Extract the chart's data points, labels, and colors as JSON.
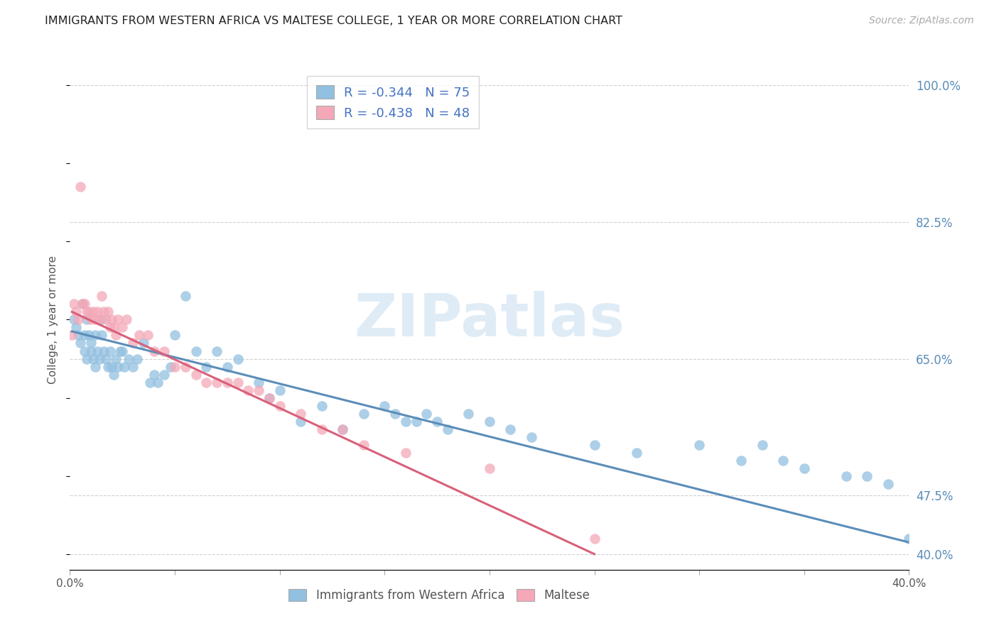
{
  "title": "IMMIGRANTS FROM WESTERN AFRICA VS MALTESE COLLEGE, 1 YEAR OR MORE CORRELATION CHART",
  "source": "Source: ZipAtlas.com",
  "ylabel": "College, 1 year or more",
  "xlim": [
    0.0,
    0.4
  ],
  "ylim": [
    0.38,
    1.02
  ],
  "xticks": [
    0.0,
    0.05,
    0.1,
    0.15,
    0.2,
    0.25,
    0.3,
    0.35,
    0.4
  ],
  "xticklabels": [
    "0.0%",
    "",
    "",
    "",
    "",
    "",
    "",
    "",
    "40.0%"
  ],
  "right_yticks": [
    0.4,
    0.475,
    0.65,
    0.825,
    1.0
  ],
  "right_yticklabels": [
    "40.0%",
    "47.5%",
    "65.0%",
    "82.5%",
    "100.0%"
  ],
  "blue_R": -0.344,
  "blue_N": 75,
  "pink_R": -0.438,
  "pink_N": 48,
  "blue_color": "#92C0E0",
  "pink_color": "#F4A8B8",
  "blue_line_color": "#5B8DB8",
  "pink_line_color": "#D9607A",
  "background_color": "#ffffff",
  "grid_color": "#d0d0d0",
  "watermark": "ZIPatlas",
  "blue_scatter_x": [
    0.002,
    0.003,
    0.004,
    0.005,
    0.006,
    0.007,
    0.007,
    0.008,
    0.008,
    0.009,
    0.01,
    0.01,
    0.011,
    0.012,
    0.012,
    0.013,
    0.014,
    0.015,
    0.015,
    0.016,
    0.017,
    0.018,
    0.019,
    0.02,
    0.021,
    0.022,
    0.023,
    0.024,
    0.025,
    0.026,
    0.028,
    0.03,
    0.032,
    0.035,
    0.038,
    0.04,
    0.042,
    0.045,
    0.048,
    0.05,
    0.055,
    0.06,
    0.065,
    0.07,
    0.075,
    0.08,
    0.09,
    0.095,
    0.1,
    0.11,
    0.12,
    0.13,
    0.14,
    0.15,
    0.155,
    0.16,
    0.165,
    0.17,
    0.175,
    0.18,
    0.19,
    0.2,
    0.21,
    0.22,
    0.25,
    0.27,
    0.3,
    0.32,
    0.33,
    0.34,
    0.35,
    0.37,
    0.38,
    0.39,
    0.4
  ],
  "blue_scatter_y": [
    0.7,
    0.69,
    0.68,
    0.67,
    0.72,
    0.68,
    0.66,
    0.65,
    0.7,
    0.68,
    0.67,
    0.66,
    0.65,
    0.68,
    0.64,
    0.66,
    0.65,
    0.68,
    0.7,
    0.66,
    0.65,
    0.64,
    0.66,
    0.64,
    0.63,
    0.65,
    0.64,
    0.66,
    0.66,
    0.64,
    0.65,
    0.64,
    0.65,
    0.67,
    0.62,
    0.63,
    0.62,
    0.63,
    0.64,
    0.68,
    0.73,
    0.66,
    0.64,
    0.66,
    0.64,
    0.65,
    0.62,
    0.6,
    0.61,
    0.57,
    0.59,
    0.56,
    0.58,
    0.59,
    0.58,
    0.57,
    0.57,
    0.58,
    0.57,
    0.56,
    0.58,
    0.57,
    0.56,
    0.55,
    0.54,
    0.53,
    0.54,
    0.52,
    0.54,
    0.52,
    0.51,
    0.5,
    0.5,
    0.49,
    0.42
  ],
  "pink_scatter_x": [
    0.001,
    0.002,
    0.003,
    0.004,
    0.005,
    0.006,
    0.007,
    0.008,
    0.009,
    0.01,
    0.011,
    0.012,
    0.013,
    0.014,
    0.015,
    0.016,
    0.017,
    0.018,
    0.019,
    0.02,
    0.021,
    0.022,
    0.023,
    0.025,
    0.027,
    0.03,
    0.033,
    0.037,
    0.04,
    0.045,
    0.05,
    0.055,
    0.06,
    0.065,
    0.07,
    0.075,
    0.08,
    0.085,
    0.09,
    0.095,
    0.1,
    0.11,
    0.12,
    0.13,
    0.14,
    0.16,
    0.2,
    0.25
  ],
  "pink_scatter_y": [
    0.68,
    0.72,
    0.71,
    0.7,
    0.87,
    0.72,
    0.72,
    0.71,
    0.71,
    0.7,
    0.71,
    0.7,
    0.71,
    0.7,
    0.73,
    0.71,
    0.7,
    0.71,
    0.69,
    0.7,
    0.69,
    0.68,
    0.7,
    0.69,
    0.7,
    0.67,
    0.68,
    0.68,
    0.66,
    0.66,
    0.64,
    0.64,
    0.63,
    0.62,
    0.62,
    0.62,
    0.62,
    0.61,
    0.61,
    0.6,
    0.59,
    0.58,
    0.56,
    0.56,
    0.54,
    0.53,
    0.51,
    0.42
  ],
  "blue_line_x": [
    0.001,
    0.4
  ],
  "blue_line_y": [
    0.685,
    0.415
  ],
  "pink_line_x": [
    0.001,
    0.25
  ],
  "pink_line_y": [
    0.71,
    0.4
  ]
}
